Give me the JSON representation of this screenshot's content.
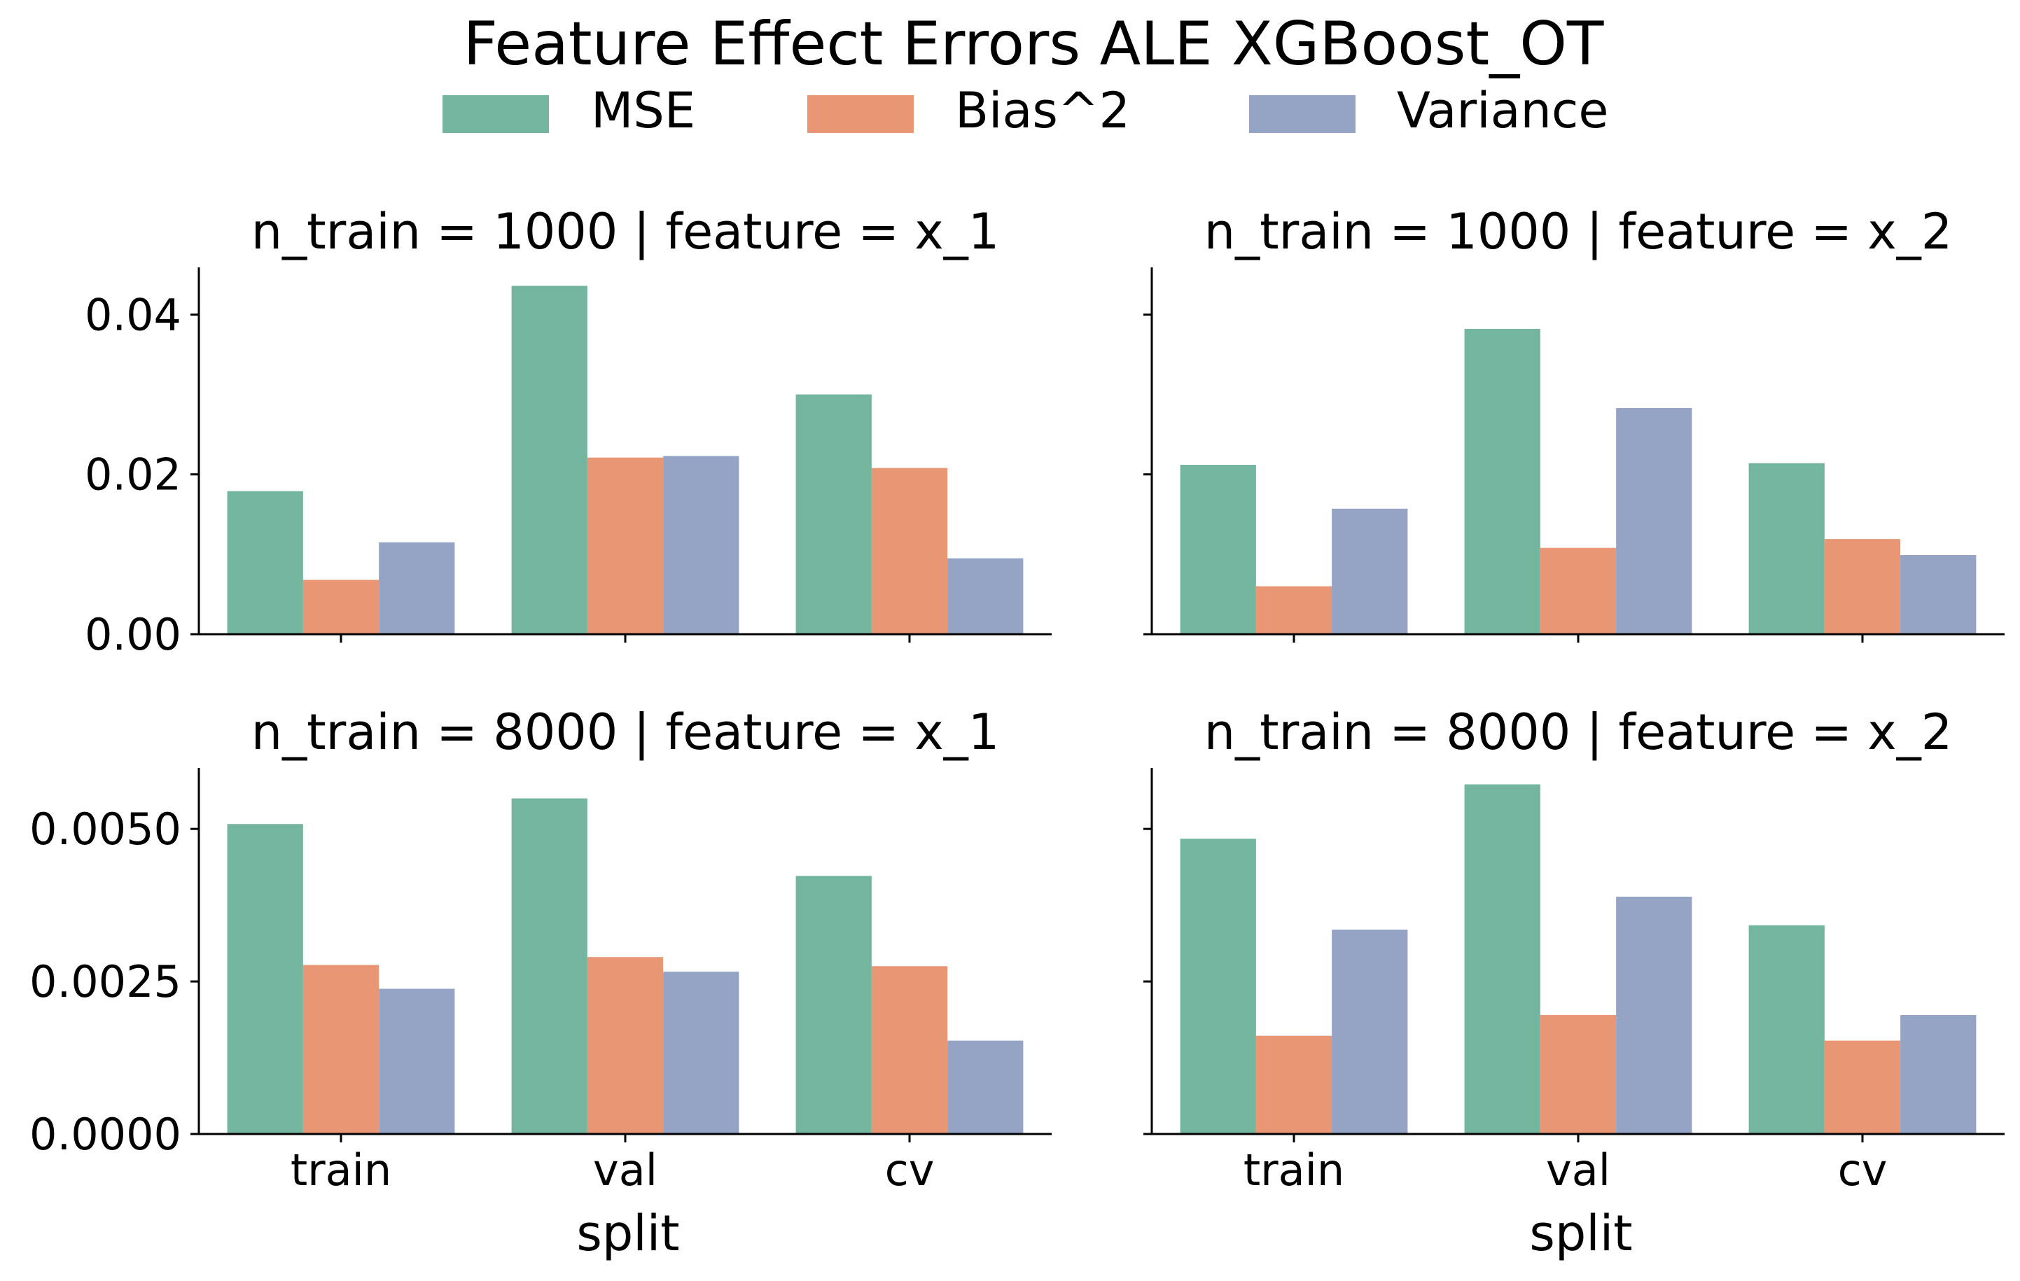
{
  "figure": {
    "title": "Feature Effect Errors ALE XGBoost_OT",
    "legend": [
      {
        "label": "MSE",
        "color": "#74b5a0"
      },
      {
        "label": "Bias^2",
        "color": "#e99674"
      },
      {
        "label": "Variance",
        "color": "#95a4c4"
      }
    ],
    "legend_position": "top-center",
    "x_axis_label": "split"
  },
  "chart_data": [
    {
      "type": "bar",
      "title": "n_train = 1000 | feature = x_1",
      "categories": [
        "train",
        "val",
        "cv"
      ],
      "series": [
        {
          "name": "MSE",
          "values": [
            0.0179,
            0.0436,
            0.03
          ]
        },
        {
          "name": "Bias^2",
          "values": [
            0.0068,
            0.0221,
            0.0208
          ]
        },
        {
          "name": "Variance",
          "values": [
            0.0115,
            0.0223,
            0.0095
          ]
        }
      ],
      "xlabel": "",
      "ylim": [
        0,
        0.0459
      ],
      "yticks": [
        0.0,
        0.02,
        0.04
      ],
      "ytick_labels": [
        "0.00",
        "0.02",
        "0.04"
      ],
      "show_yticklabels": true,
      "show_xticklabels": false,
      "grid": false
    },
    {
      "type": "bar",
      "title": "n_train = 1000 | feature = x_2",
      "categories": [
        "train",
        "val",
        "cv"
      ],
      "series": [
        {
          "name": "MSE",
          "values": [
            0.0212,
            0.0382,
            0.0214
          ]
        },
        {
          "name": "Bias^2",
          "values": [
            0.006,
            0.0108,
            0.0119
          ]
        },
        {
          "name": "Variance",
          "values": [
            0.0157,
            0.0283,
            0.0099
          ]
        }
      ],
      "xlabel": "",
      "ylim": [
        0,
        0.0459
      ],
      "yticks": [
        0.0,
        0.02,
        0.04
      ],
      "ytick_labels": [
        "",
        "",
        ""
      ],
      "show_yticklabels": false,
      "show_xticklabels": false,
      "grid": false
    },
    {
      "type": "bar",
      "title": "n_train = 8000 | feature = x_1",
      "categories": [
        "train",
        "val",
        "cv"
      ],
      "series": [
        {
          "name": "MSE",
          "values": [
            0.00508,
            0.0055,
            0.00423
          ]
        },
        {
          "name": "Bias^2",
          "values": [
            0.00277,
            0.0029,
            0.00275
          ]
        },
        {
          "name": "Variance",
          "values": [
            0.00238,
            0.00266,
            0.00153
          ]
        }
      ],
      "xlabel": "split",
      "ylim": [
        0,
        0.006
      ],
      "yticks": [
        0.0,
        0.0025,
        0.005
      ],
      "ytick_labels": [
        "0.0000",
        "0.0025",
        "0.0050"
      ],
      "show_yticklabels": true,
      "show_xticklabels": true,
      "grid": false
    },
    {
      "type": "bar",
      "title": "n_train = 8000 | feature = x_2",
      "categories": [
        "train",
        "val",
        "cv"
      ],
      "series": [
        {
          "name": "MSE",
          "values": [
            0.00484,
            0.00573,
            0.00342
          ]
        },
        {
          "name": "Bias^2",
          "values": [
            0.00161,
            0.00195,
            0.00153
          ]
        },
        {
          "name": "Variance",
          "values": [
            0.00335,
            0.00389,
            0.00195
          ]
        }
      ],
      "xlabel": "split",
      "ylim": [
        0,
        0.006
      ],
      "yticks": [
        0.0,
        0.0025,
        0.005
      ],
      "ytick_labels": [
        "",
        "",
        ""
      ],
      "show_yticklabels": false,
      "show_xticklabels": true,
      "grid": false
    }
  ]
}
